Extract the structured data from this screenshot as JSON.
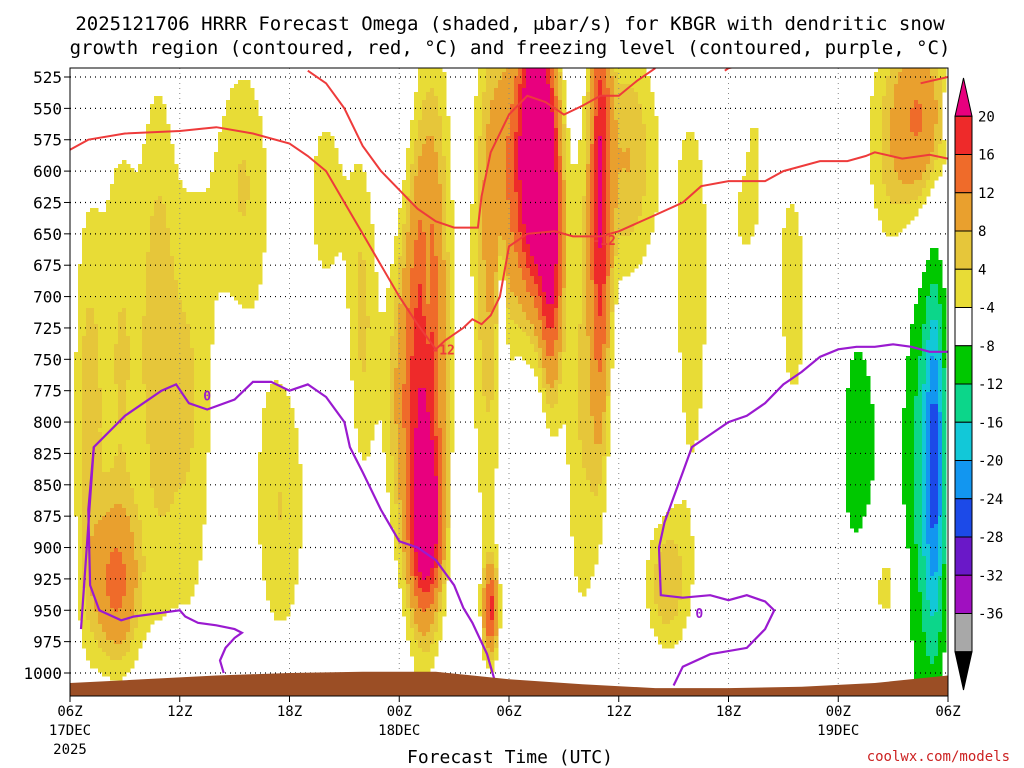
{
  "chart_data": {
    "type": "heatmap",
    "title_line1": "2025121706 HRRR Forecast Omega (shaded, μbar/s) for KBGR with dendritic snow",
    "title_line2": "growth region (contoured, red, °C) and freezing level (contoured, purple, °C)",
    "xlabel": "Forecast Time (UTC)",
    "credit": "coolwx.com/models",
    "x_range_hours": [
      0,
      48
    ],
    "y_levels_hpa": [
      525,
      550,
      575,
      600,
      625,
      650,
      675,
      700,
      725,
      750,
      775,
      800,
      825,
      850,
      875,
      900,
      925,
      950,
      975,
      1000
    ],
    "x_ticks": [
      {
        "h": 0,
        "label": "06Z",
        "sub1": "17DEC",
        "sub2": "2025"
      },
      {
        "h": 6,
        "label": "12Z",
        "sub1": "",
        "sub2": ""
      },
      {
        "h": 12,
        "label": "18Z",
        "sub1": "",
        "sub2": ""
      },
      {
        "h": 18,
        "label": "00Z",
        "sub1": "18DEC",
        "sub2": ""
      },
      {
        "h": 24,
        "label": "06Z",
        "sub1": "",
        "sub2": ""
      },
      {
        "h": 30,
        "label": "12Z",
        "sub1": "",
        "sub2": ""
      },
      {
        "h": 36,
        "label": "18Z",
        "sub1": "",
        "sub2": ""
      },
      {
        "h": 42,
        "label": "00Z",
        "sub1": "19DEC",
        "sub2": ""
      },
      {
        "h": 48,
        "label": "06Z",
        "sub1": "",
        "sub2": ""
      }
    ],
    "colorbar": {
      "labels": [
        "20",
        "16",
        "12",
        "8",
        "4",
        "-4",
        "-8",
        "-12",
        "-16",
        "-20",
        "-24",
        "-28",
        "-32",
        "-36"
      ],
      "colors": [
        "#e8007e",
        "#ee2a2a",
        "#ef6b2a",
        "#e9a02e",
        "#e6c63a",
        "#e8dc36",
        "#ffffff",
        "#00c800",
        "#0cd68a",
        "#12c8d8",
        "#1296f0",
        "#1c4ae8",
        "#6a18c8",
        "#a010c0",
        "#a8a8a8",
        "#000000"
      ]
    },
    "omega_blobs": [
      {
        "h": 0.9,
        "p": 800,
        "w": 0.9,
        "d": 210,
        "v": 6
      },
      {
        "h": 2.8,
        "p": 750,
        "w": 1.4,
        "d": 240,
        "v": 6
      },
      {
        "h": 2.5,
        "p": 930,
        "w": 1.3,
        "d": 60,
        "v": 10
      },
      {
        "h": 4.8,
        "p": 720,
        "w": 1.0,
        "d": 260,
        "v": 5
      },
      {
        "h": 6.5,
        "p": 790,
        "w": 1.6,
        "d": 230,
        "v": 6
      },
      {
        "h": 9.5,
        "p": 610,
        "w": 1.8,
        "d": 130,
        "v": 6
      },
      {
        "h": 11.5,
        "p": 870,
        "w": 1.8,
        "d": 140,
        "v": 6
      },
      {
        "h": 14.0,
        "p": 620,
        "w": 1.4,
        "d": 110,
        "v": 5
      },
      {
        "h": 16.0,
        "p": 720,
        "w": 0.9,
        "d": 160,
        "v": 6
      },
      {
        "h": 18.0,
        "p": 780,
        "w": 1.1,
        "d": 140,
        "v": 6
      },
      {
        "h": 19.2,
        "p": 780,
        "w": 1.0,
        "d": 180,
        "v": 14
      },
      {
        "h": 19.5,
        "p": 880,
        "w": 0.8,
        "d": 60,
        "v": 19
      },
      {
        "h": 20.0,
        "p": 690,
        "w": 1.1,
        "d": 240,
        "v": 7
      },
      {
        "h": 22.8,
        "p": 720,
        "w": 1.0,
        "d": 260,
        "v": 6
      },
      {
        "h": 23.0,
        "p": 950,
        "w": 0.4,
        "d": 35,
        "v": 15
      },
      {
        "h": 24.6,
        "p": 600,
        "w": 1.7,
        "d": 130,
        "v": 12
      },
      {
        "h": 25.5,
        "p": 580,
        "w": 0.85,
        "d": 100,
        "v": 26
      },
      {
        "h": 26.3,
        "p": 660,
        "w": 0.6,
        "d": 110,
        "v": 18
      },
      {
        "h": 28.0,
        "p": 790,
        "w": 1.2,
        "d": 230,
        "v": 6
      },
      {
        "h": 29.0,
        "p": 620,
        "w": 0.55,
        "d": 180,
        "v": 16
      },
      {
        "h": 30.5,
        "p": 590,
        "w": 1.8,
        "d": 110,
        "v": 8
      },
      {
        "h": 32.5,
        "p": 930,
        "w": 1.3,
        "d": 60,
        "v": 7
      },
      {
        "h": 34.0,
        "p": 700,
        "w": 1.4,
        "d": 250,
        "v": 5
      },
      {
        "h": 37.0,
        "p": 600,
        "w": 1.4,
        "d": 120,
        "v": 5
      },
      {
        "h": 39.5,
        "p": 700,
        "w": 1.0,
        "d": 140,
        "v": 5
      },
      {
        "h": 41.5,
        "p": 800,
        "w": 1.1,
        "d": 160,
        "v": 5
      },
      {
        "h": 44.5,
        "p": 590,
        "w": 1.6,
        "d": 120,
        "v": 5
      },
      {
        "h": 44.5,
        "p": 930,
        "w": 1.4,
        "d": 50,
        "v": 6
      },
      {
        "h": 46.5,
        "p": 560,
        "w": 1.5,
        "d": 80,
        "v": 12
      },
      {
        "h": 19.5,
        "p": 690,
        "w": 0.15,
        "d": 50,
        "v": -7
      },
      {
        "h": 23.6,
        "p": 720,
        "w": 0.25,
        "d": 70,
        "v": -7
      },
      {
        "h": 36.4,
        "p": 560,
        "w": 0.55,
        "d": 40,
        "v": -6
      },
      {
        "h": 42.8,
        "p": 820,
        "w": 1.6,
        "d": 140,
        "v": -7
      },
      {
        "h": 46.6,
        "p": 850,
        "w": 1.1,
        "d": 180,
        "v": -10
      },
      {
        "h": 47.3,
        "p": 830,
        "w": 0.55,
        "d": 140,
        "v": -16
      }
    ],
    "dgz_contours": [
      {
        "name": "dgz-upper-left",
        "points": [
          [
            0,
            583
          ],
          [
            1,
            575
          ],
          [
            3,
            570
          ],
          [
            6,
            568
          ],
          [
            8,
            565
          ],
          [
            10,
            570
          ],
          [
            12,
            578
          ],
          [
            13,
            588
          ],
          [
            14,
            600
          ],
          [
            15,
            625
          ],
          [
            16,
            650
          ],
          [
            17,
            675
          ],
          [
            18,
            700
          ],
          [
            19,
            722
          ],
          [
            20,
            742
          ]
        ]
      },
      {
        "name": "dgz-top",
        "points": [
          [
            13,
            520
          ],
          [
            14,
            530
          ],
          [
            15,
            550
          ],
          [
            16,
            580
          ],
          [
            17,
            600
          ],
          [
            18,
            615
          ],
          [
            19,
            630
          ],
          [
            20,
            640
          ],
          [
            21,
            645
          ],
          [
            22.3,
            645
          ],
          [
            22.5,
            620
          ],
          [
            23,
            585
          ],
          [
            24,
            555
          ],
          [
            25,
            540
          ],
          [
            26,
            545
          ],
          [
            27,
            555
          ],
          [
            28,
            548
          ],
          [
            29,
            540
          ],
          [
            30,
            540
          ],
          [
            31,
            528
          ],
          [
            32,
            518
          ]
        ]
      },
      {
        "name": "dgz-lower",
        "points": [
          [
            20,
            742
          ],
          [
            20.5,
            735
          ],
          [
            21.5,
            725
          ],
          [
            22,
            718
          ],
          [
            22.5,
            722
          ],
          [
            23,
            715
          ],
          [
            23.5,
            700
          ],
          [
            24,
            660
          ],
          [
            25,
            650
          ],
          [
            26.5,
            648
          ],
          [
            27.5,
            652
          ],
          [
            29,
            652
          ],
          [
            30,
            648
          ],
          [
            32,
            635
          ],
          [
            33.5,
            625
          ],
          [
            34.5,
            612
          ],
          [
            36,
            608
          ],
          [
            38,
            608
          ],
          [
            39,
            600
          ],
          [
            41,
            592
          ],
          [
            42.5,
            592
          ],
          [
            43.5,
            588
          ],
          [
            44,
            585
          ],
          [
            45.5,
            590
          ],
          [
            47,
            587
          ],
          [
            48,
            590
          ]
        ]
      },
      {
        "name": "dgz-upper-right",
        "points": [
          [
            35.8,
            520
          ],
          [
            36,
            518
          ],
          [
            38,
            512
          ]
        ]
      },
      {
        "name": "dgz-top-right",
        "points": [
          [
            46.5,
            530
          ],
          [
            48,
            525
          ]
        ]
      }
    ],
    "dgz_labels": [
      {
        "h": 29.2,
        "p": 655,
        "text": "-12"
      },
      {
        "h": 20.4,
        "p": 742,
        "text": "-12"
      }
    ],
    "freezing_contours": [
      {
        "name": "freeze-left",
        "points": [
          [
            0.6,
            965
          ],
          [
            1.3,
            820
          ],
          [
            3,
            795
          ],
          [
            5,
            775
          ],
          [
            5.8,
            770
          ],
          [
            6.5,
            785
          ],
          [
            7.5,
            790
          ],
          [
            9,
            782
          ],
          [
            10,
            768
          ],
          [
            11,
            768
          ],
          [
            12,
            775
          ],
          [
            13,
            770
          ],
          [
            14,
            780
          ],
          [
            15,
            800
          ],
          [
            15.3,
            820
          ],
          [
            16,
            840
          ],
          [
            17,
            870
          ],
          [
            18,
            895
          ],
          [
            19,
            900
          ],
          [
            20,
            910
          ],
          [
            21,
            930
          ],
          [
            21.5,
            948
          ],
          [
            22,
            960
          ],
          [
            22.8,
            985
          ],
          [
            23,
            995
          ],
          [
            23.3,
            1010
          ]
        ]
      },
      {
        "name": "freeze-left-loop",
        "points": [
          [
            1.3,
            820
          ],
          [
            1.0,
            870
          ],
          [
            1.1,
            930
          ],
          [
            1.6,
            950
          ],
          [
            2.8,
            958
          ],
          [
            3.5,
            955
          ],
          [
            5,
            952
          ],
          [
            6,
            950
          ],
          [
            6.3,
            955
          ],
          [
            7,
            960
          ],
          [
            8,
            962
          ],
          [
            9,
            965
          ],
          [
            9.4,
            968
          ],
          [
            9,
            972
          ],
          [
            8.5,
            980
          ],
          [
            8.2,
            990
          ],
          [
            8.4,
            1000
          ]
        ]
      },
      {
        "name": "freeze-right",
        "points": [
          [
            33,
            1010
          ],
          [
            33.5,
            995
          ],
          [
            35,
            985
          ],
          [
            37,
            980
          ],
          [
            38,
            965
          ],
          [
            38.5,
            950
          ],
          [
            38,
            943
          ],
          [
            37,
            938
          ],
          [
            36,
            942
          ],
          [
            35,
            938
          ],
          [
            33.5,
            940
          ],
          [
            32.3,
            938
          ],
          [
            32.2,
            900
          ],
          [
            32.5,
            880
          ],
          [
            33,
            860
          ],
          [
            33.5,
            840
          ],
          [
            34,
            820
          ],
          [
            35,
            810
          ],
          [
            36,
            800
          ],
          [
            37,
            795
          ],
          [
            38,
            785
          ],
          [
            39,
            770
          ],
          [
            40,
            760
          ],
          [
            41,
            748
          ],
          [
            42,
            742
          ],
          [
            43,
            740
          ],
          [
            44,
            740
          ],
          [
            45,
            738
          ],
          [
            46,
            740
          ],
          [
            47,
            744
          ],
          [
            48,
            744
          ]
        ]
      }
    ],
    "freezing_labels": [
      {
        "h": 7.5,
        "p": 779,
        "text": "0"
      },
      {
        "h": 34.4,
        "p": 952,
        "text": "0"
      }
    ],
    "terrain_surface_hpa": [
      [
        0,
        1008
      ],
      [
        4,
        1005
      ],
      [
        8,
        1002
      ],
      [
        12,
        1000
      ],
      [
        16,
        999
      ],
      [
        20,
        999
      ],
      [
        24,
        1005
      ],
      [
        28,
        1009
      ],
      [
        32,
        1012
      ],
      [
        36,
        1012
      ],
      [
        40,
        1011
      ],
      [
        44,
        1008
      ],
      [
        48,
        1002
      ]
    ]
  }
}
